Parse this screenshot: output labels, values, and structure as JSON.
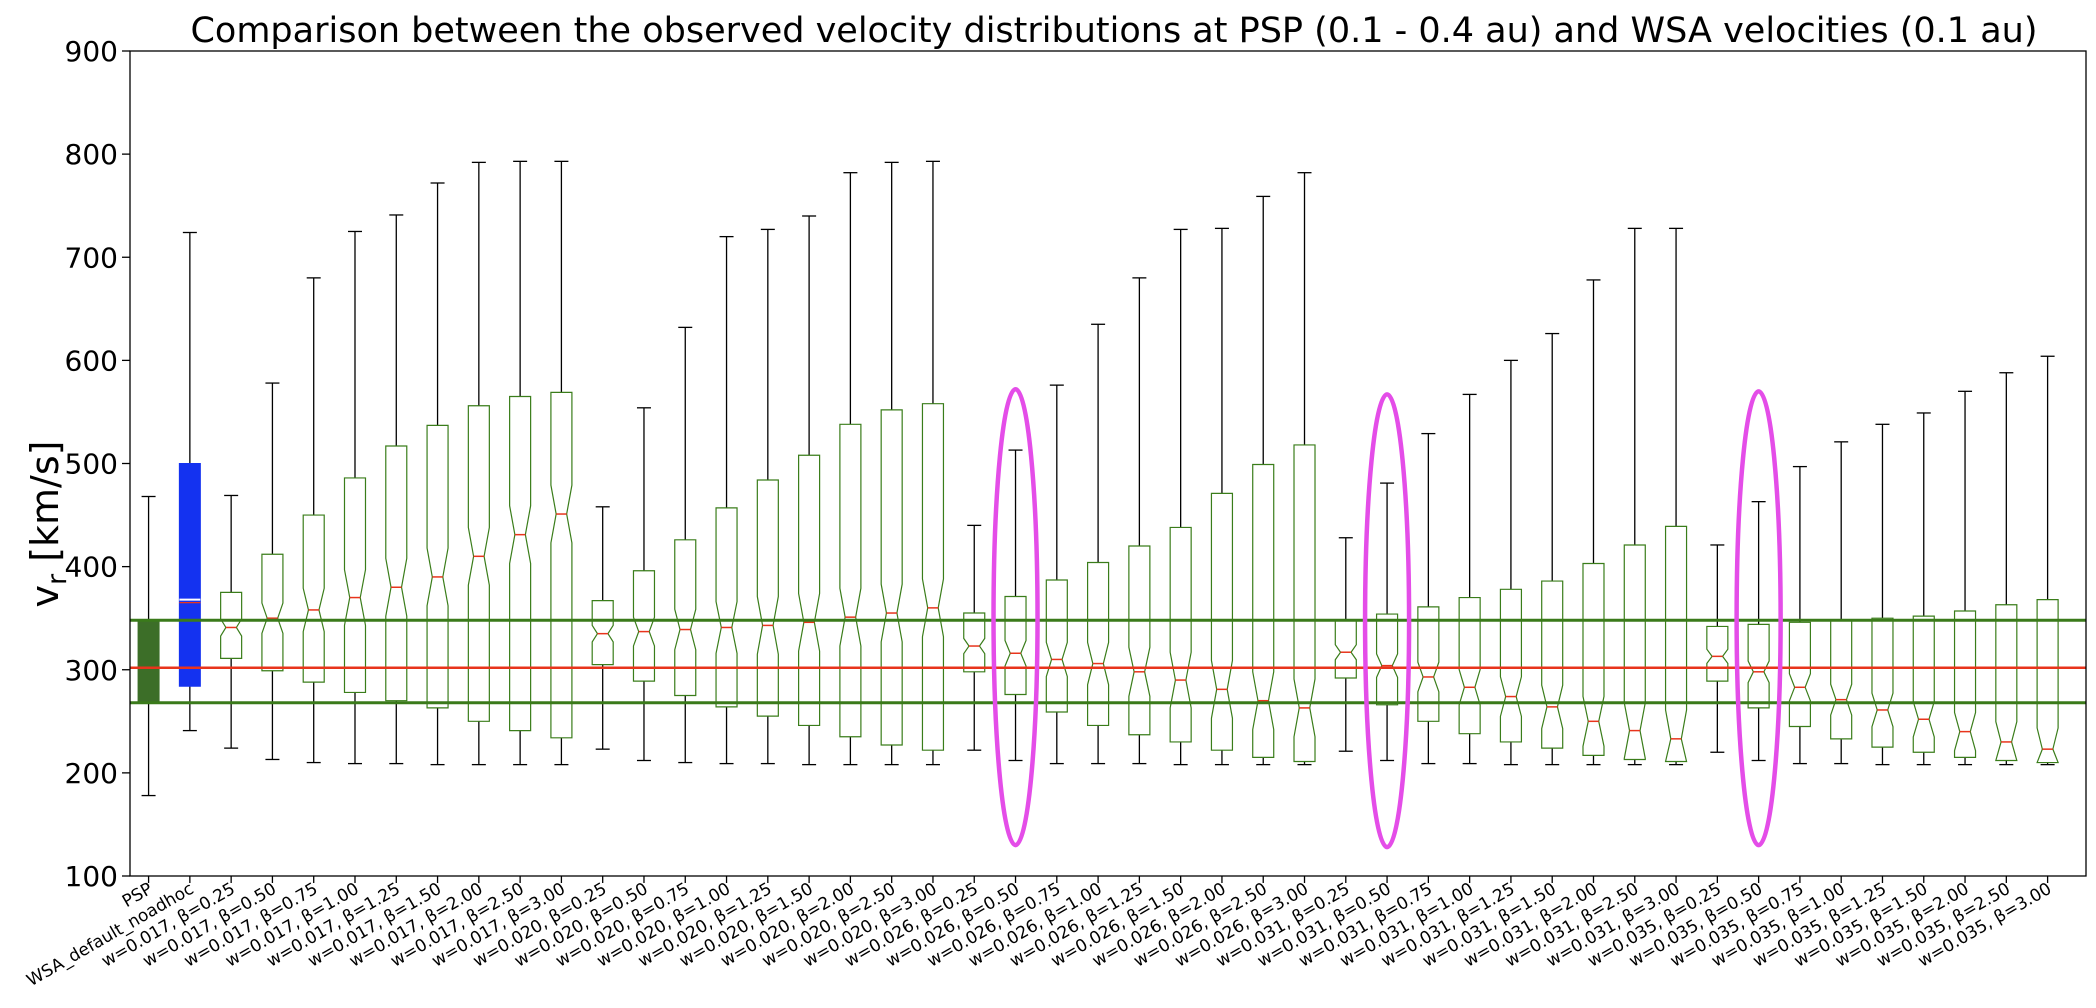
{
  "chart_data": {
    "type": "boxplot",
    "title": "Comparison between the observed velocity distributions at PSP (0.1 - 0.4 au) and WSA velocities (0.1 au)",
    "xlabel": "",
    "ylabel": "v_r [km/s]",
    "ylabel_main": "v",
    "ylabel_sub": "r",
    "ylabel_rest": " [km/s]",
    "ylim": [
      100,
      900
    ],
    "yticks": [
      100,
      200,
      300,
      400,
      500,
      600,
      700,
      800,
      900
    ],
    "grid": false,
    "categories": [
      "PSP",
      "WSA_default_noadhoc",
      "w=0.017, β=0.25",
      "w=0.017, β=0.50",
      "w=0.017, β=0.75",
      "w=0.017, β=1.00",
      "w=0.017, β=1.25",
      "w=0.017, β=1.50",
      "w=0.017, β=2.00",
      "w=0.017, β=2.50",
      "w=0.017, β=3.00",
      "w=0.020, β=0.25",
      "w=0.020, β=0.50",
      "w=0.020, β=0.75",
      "w=0.020, β=1.00",
      "w=0.020, β=1.25",
      "w=0.020, β=1.50",
      "w=0.020, β=2.00",
      "w=0.020, β=2.50",
      "w=0.020, β=3.00",
      "w=0.026, β=0.25",
      "w=0.026, β=0.50",
      "w=0.026, β=0.75",
      "w=0.026, β=1.00",
      "w=0.026, β=1.25",
      "w=0.026, β=1.50",
      "w=0.026, β=2.00",
      "w=0.026, β=2.50",
      "w=0.026, β=3.00",
      "w=0.031, β=0.25",
      "w=0.031, β=0.50",
      "w=0.031, β=0.75",
      "w=0.031, β=1.00",
      "w=0.031, β=1.25",
      "w=0.031, β=1.50",
      "w=0.031, β=2.00",
      "w=0.031, β=2.50",
      "w=0.031, β=3.00",
      "w=0.035, β=0.25",
      "w=0.035, β=0.50",
      "w=0.035, β=0.75",
      "w=0.035, β=1.00",
      "w=0.035, β=1.25",
      "w=0.035, β=1.50",
      "w=0.035, β=2.00",
      "w=0.035, β=2.50",
      "w=0.035, β=3.00"
    ],
    "boxes": [
      {
        "min": 178,
        "q1": 268,
        "median": 302,
        "q3": 348,
        "max": 468
      },
      {
        "min": 241,
        "q1": 284,
        "median": 368,
        "q3": 500,
        "max": 724
      },
      {
        "min": 224,
        "q1": 311,
        "median": 341,
        "q3": 375,
        "max": 469
      },
      {
        "min": 213,
        "q1": 299,
        "median": 350,
        "q3": 412,
        "max": 578
      },
      {
        "min": 210,
        "q1": 288,
        "median": 358,
        "q3": 450,
        "max": 680
      },
      {
        "min": 209,
        "q1": 278,
        "median": 370,
        "q3": 486,
        "max": 725
      },
      {
        "min": 209,
        "q1": 270,
        "median": 380,
        "q3": 517,
        "max": 741
      },
      {
        "min": 208,
        "q1": 263,
        "median": 390,
        "q3": 537,
        "max": 772
      },
      {
        "min": 208,
        "q1": 250,
        "median": 410,
        "q3": 556,
        "max": 792
      },
      {
        "min": 208,
        "q1": 241,
        "median": 431,
        "q3": 565,
        "max": 793
      },
      {
        "min": 208,
        "q1": 234,
        "median": 451,
        "q3": 569,
        "max": 793
      },
      {
        "min": 223,
        "q1": 305,
        "median": 335,
        "q3": 367,
        "max": 458
      },
      {
        "min": 212,
        "q1": 289,
        "median": 337,
        "q3": 396,
        "max": 554
      },
      {
        "min": 210,
        "q1": 275,
        "median": 339,
        "q3": 426,
        "max": 632
      },
      {
        "min": 209,
        "q1": 264,
        "median": 341,
        "q3": 457,
        "max": 720
      },
      {
        "min": 209,
        "q1": 255,
        "median": 343,
        "q3": 484,
        "max": 727
      },
      {
        "min": 208,
        "q1": 246,
        "median": 346,
        "q3": 508,
        "max": 740
      },
      {
        "min": 208,
        "q1": 235,
        "median": 351,
        "q3": 538,
        "max": 782
      },
      {
        "min": 208,
        "q1": 227,
        "median": 355,
        "q3": 552,
        "max": 792
      },
      {
        "min": 208,
        "q1": 222,
        "median": 360,
        "q3": 558,
        "max": 793
      },
      {
        "min": 222,
        "q1": 298,
        "median": 323,
        "q3": 355,
        "max": 440
      },
      {
        "min": 212,
        "q1": 276,
        "median": 316,
        "q3": 371,
        "max": 513
      },
      {
        "min": 209,
        "q1": 259,
        "median": 310,
        "q3": 387,
        "max": 576
      },
      {
        "min": 209,
        "q1": 246,
        "median": 306,
        "q3": 404,
        "max": 635
      },
      {
        "min": 209,
        "q1": 237,
        "median": 298,
        "q3": 420,
        "max": 680
      },
      {
        "min": 208,
        "q1": 230,
        "median": 290,
        "q3": 438,
        "max": 727
      },
      {
        "min": 208,
        "q1": 222,
        "median": 281,
        "q3": 471,
        "max": 728
      },
      {
        "min": 208,
        "q1": 215,
        "median": 270,
        "q3": 499,
        "max": 759
      },
      {
        "min": 208,
        "q1": 211,
        "median": 263,
        "q3": 518,
        "max": 782
      },
      {
        "min": 221,
        "q1": 292,
        "median": 317,
        "q3": 348,
        "max": 428
      },
      {
        "min": 212,
        "q1": 266,
        "median": 304,
        "q3": 354,
        "max": 481
      },
      {
        "min": 209,
        "q1": 250,
        "median": 293,
        "q3": 361,
        "max": 529
      },
      {
        "min": 209,
        "q1": 238,
        "median": 283,
        "q3": 370,
        "max": 567
      },
      {
        "min": 208,
        "q1": 230,
        "median": 274,
        "q3": 378,
        "max": 600
      },
      {
        "min": 208,
        "q1": 224,
        "median": 264,
        "q3": 386,
        "max": 626
      },
      {
        "min": 208,
        "q1": 217,
        "median": 250,
        "q3": 403,
        "max": 678
      },
      {
        "min": 208,
        "q1": 213,
        "median": 241,
        "q3": 421,
        "max": 728
      },
      {
        "min": 208,
        "q1": 211,
        "median": 233,
        "q3": 439,
        "max": 728
      },
      {
        "min": 220,
        "q1": 289,
        "median": 313,
        "q3": 342,
        "max": 421
      },
      {
        "min": 212,
        "q1": 263,
        "median": 298,
        "q3": 344,
        "max": 463
      },
      {
        "min": 209,
        "q1": 245,
        "median": 283,
        "q3": 346,
        "max": 497
      },
      {
        "min": 209,
        "q1": 233,
        "median": 271,
        "q3": 348,
        "max": 521
      },
      {
        "min": 208,
        "q1": 225,
        "median": 261,
        "q3": 350,
        "max": 538
      },
      {
        "min": 208,
        "q1": 220,
        "median": 252,
        "q3": 352,
        "max": 549
      },
      {
        "min": 208,
        "q1": 215,
        "median": 240,
        "q3": 357,
        "max": 570
      },
      {
        "min": 208,
        "q1": 212,
        "median": 230,
        "q3": 363,
        "max": 588
      },
      {
        "min": 208,
        "q1": 210,
        "median": 223,
        "q3": 368,
        "max": 604
      }
    ],
    "reference_lines": [
      {
        "name": "PSP lower quartile",
        "value": 268,
        "color": "#3a7a1a"
      },
      {
        "name": "PSP median",
        "value": 302,
        "color": "#e8341c"
      },
      {
        "name": "PSP upper quartile",
        "value": 348,
        "color": "#3a7a1a"
      }
    ],
    "highlight_ellipses": [
      {
        "category_index": 21,
        "y_range": [
          130,
          572
        ]
      },
      {
        "category_index": 30,
        "y_range": [
          128,
          567
        ]
      },
      {
        "category_index": 39,
        "y_range": [
          130,
          570
        ]
      }
    ],
    "colors": {
      "psp_box": "#3c6e28",
      "wsa_box": "#1432f0",
      "model_box_edge": "#3a7d1a",
      "whisker": "#000000",
      "median": "#e8341c",
      "highlight": "#e44de8"
    }
  }
}
